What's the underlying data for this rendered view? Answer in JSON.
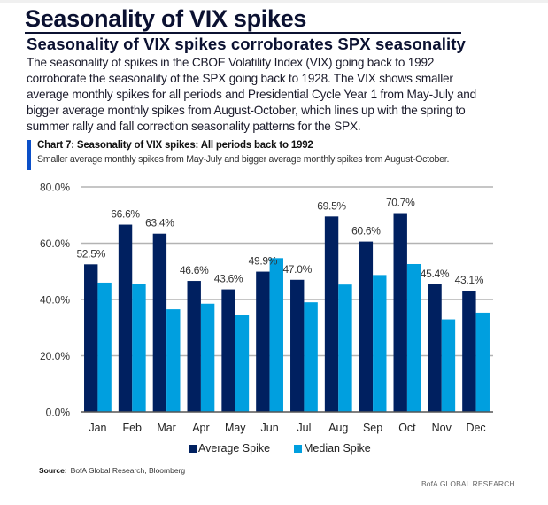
{
  "header": {
    "title": "Seasonality of VIX spikes",
    "subtitle": "Seasonality of VIX spikes corroborates SPX seasonality",
    "body_lines": [
      "The seasonality of spikes in the CBOE Volatility Index (VIX) going back to 1992",
      "corroborate the seasonality of the SPX going back to 1928. The VIX shows smaller",
      "average monthly spikes for all periods and Presidential Cycle Year 1 from May-July and",
      "bigger average monthly spikes from August-October, which lines up with the spring to",
      "summer rally and fall correction seasonality patterns for the SPX."
    ]
  },
  "chart_header": {
    "title": "Chart 7: Seasonality of VIX spikes: All periods back to 1992",
    "subtitle": "Smaller average monthly spikes from May-July and bigger average monthly spikes from August-October.",
    "accent_color": "#0b4fc8"
  },
  "chart_data": {
    "type": "bar",
    "title": "Chart 7: Seasonality of VIX spikes: All periods back to 1992",
    "xlabel": "",
    "ylabel": "",
    "categories": [
      "Jan",
      "Feb",
      "Mar",
      "Apr",
      "May",
      "Jun",
      "Jul",
      "Aug",
      "Sep",
      "Oct",
      "Nov",
      "Dec"
    ],
    "series": [
      {
        "name": "Average Spike",
        "color": "#002060",
        "values": [
          52.5,
          66.6,
          63.4,
          46.6,
          43.6,
          49.9,
          47.0,
          69.5,
          60.6,
          70.7,
          45.4,
          43.1
        ],
        "labels": [
          "52.5%",
          "66.6%",
          "63.4%",
          "46.6%",
          "43.6%",
          "49.9%",
          "47.0%",
          "69.5%",
          "60.6%",
          "70.7%",
          "45.4%",
          "43.1%"
        ]
      },
      {
        "name": "Median Spike",
        "color": "#009fdf",
        "values": [
          46.0,
          45.4,
          36.5,
          38.5,
          34.5,
          54.7,
          39.0,
          45.3,
          48.7,
          52.6,
          32.9,
          35.3
        ]
      }
    ],
    "ylim": [
      0,
      80
    ],
    "yticks": [
      0,
      20,
      40,
      60,
      80
    ],
    "ytick_labels": [
      "0.0%",
      "20.0%",
      "40.0%",
      "60.0%",
      "80.0%"
    ],
    "grid": true,
    "legend": "bottom-center"
  },
  "footer": {
    "source_label": "Source:",
    "source_text": "BofA Global Research, Bloomberg",
    "brand": "BofA GLOBAL RESEARCH"
  }
}
